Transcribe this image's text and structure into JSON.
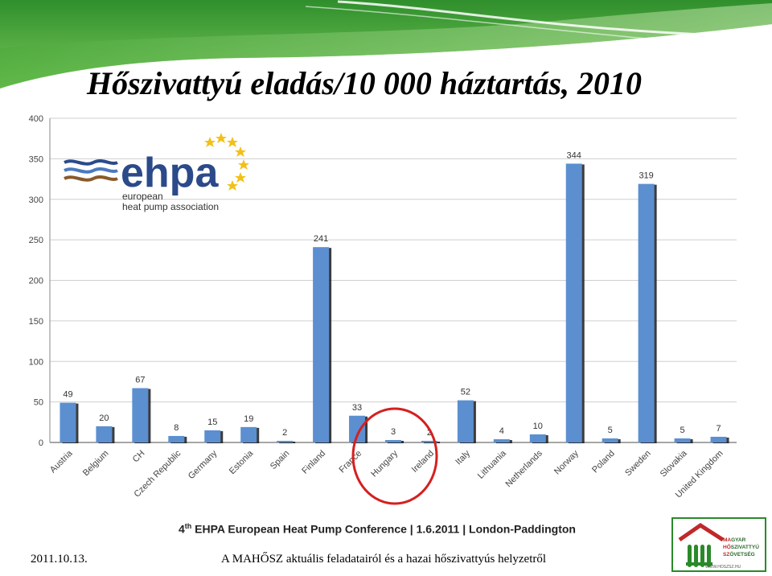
{
  "slide": {
    "title": "Hőszivattyú eladás/10 000 háztartás, 2010",
    "conference_prefix": "4",
    "conference_sup": "th",
    "conference_rest": " EHPA European Heat Pump Conference | 1.6.2011 | London-Paddington",
    "footer_date": "2011.10.13.",
    "footer_text": "A MAHŐSZ aktuális feladatairól és a hazai hőszivattyús helyzetről"
  },
  "ehpa_logo": {
    "name": "ehpa",
    "line1": "european",
    "line2": "heat pump association"
  },
  "mahosz_logo": {
    "line1_a": "MA",
    "line1_b": "GYAR",
    "line2_a": "HŐ",
    "line2_b": "SZIVATTYÚ",
    "line3_a": "SZ",
    "line3_b": "ÖVETSÉG",
    "web": "WWW.HOSZSZ.HU"
  },
  "colors": {
    "bar": "#5b8fd0",
    "bar_shadow": "#1a1a1a",
    "highlight_circle": "#d42020",
    "banner_green": "#3ea03a"
  },
  "chart_data": {
    "type": "bar",
    "title": "",
    "xlabel": "",
    "ylabel": "",
    "ylim": [
      0,
      400
    ],
    "yticks": [
      0,
      50,
      100,
      150,
      200,
      250,
      300,
      350,
      400
    ],
    "grid": true,
    "legend": "none",
    "highlighted_category": "Hungary",
    "categories": [
      "Austria",
      "Belgium",
      "CH",
      "Czech Republic",
      "Germany",
      "Estonia",
      "Spain",
      "Finland",
      "France",
      "Hungary",
      "Ireland",
      "Italy",
      "Lithuania",
      "Netherlands",
      "Norway",
      "Poland",
      "Sweden",
      "Slovakia",
      "United Kingdom"
    ],
    "values": [
      49,
      20,
      67,
      8,
      15,
      19,
      2,
      241,
      33,
      3,
      2,
      52,
      4,
      10,
      344,
      5,
      319,
      5,
      7
    ]
  }
}
